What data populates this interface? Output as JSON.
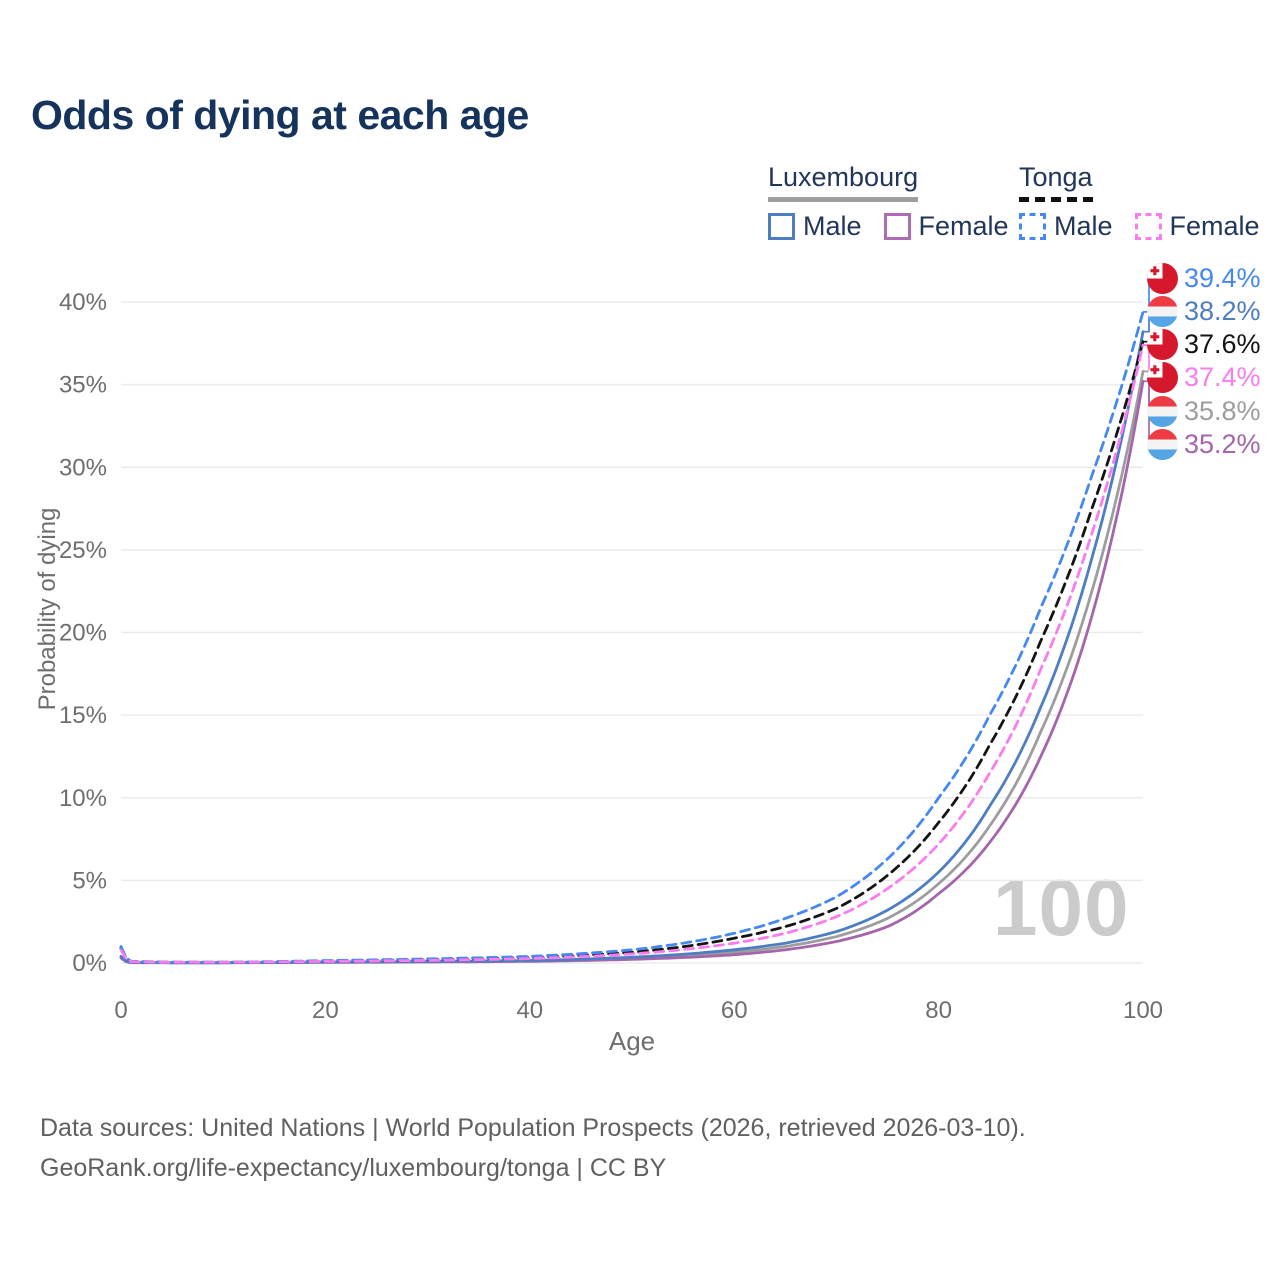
{
  "title": "Odds of dying at each age",
  "watermark": "100",
  "legend": {
    "luxembourg": {
      "title": "Luxembourg",
      "male_label": "Male",
      "female_label": "Female"
    },
    "tonga": {
      "title": "Tonga",
      "male_label": "Male",
      "female_label": "Female"
    }
  },
  "footer": {
    "line1": "Data sources: United Nations | World Population Prospects (2026, retrieved 2026-03-10).",
    "line2": "GeoRank.org/life-expectancy/luxembourg/tonga | CC BY"
  },
  "colors": {
    "title": "#16335c",
    "grid": "#ebebeb",
    "axis_text": "#6e6e6e",
    "tonga_male": "#4488f0",
    "luxembourg_male": "#4d7ec2",
    "tonga_both": "#141414",
    "tonga_female": "#fa7cee",
    "luxembourg_both": "#9d9d9d",
    "luxembourg_female": "#a565aa",
    "flag_red": "#d6182d",
    "flag_lux_red": "#ee3b44",
    "flag_lux_blue": "#55a5e5"
  },
  "chart_data": {
    "type": "line",
    "title": "Odds of dying at each age",
    "xlabel": "Age",
    "ylabel": "Probability of dying",
    "xlim": [
      0,
      100
    ],
    "ylim": [
      0,
      40
    ],
    "grid": true,
    "legend_position": "top-right",
    "xtick_values": [
      0,
      20,
      40,
      60,
      80,
      100
    ],
    "xtick_labels": [
      "0",
      "20",
      "40",
      "60",
      "80",
      "100"
    ],
    "ytick_values": [
      0,
      5,
      10,
      15,
      20,
      25,
      30,
      35,
      40
    ],
    "ytick_labels": [
      "0%",
      "5%",
      "10%",
      "15%",
      "20%",
      "25%",
      "30%",
      "35%",
      "40%"
    ],
    "x": [
      0,
      1,
      5,
      10,
      20,
      30,
      40,
      50,
      60,
      65,
      70,
      75,
      80,
      85,
      90,
      95,
      100
    ],
    "series": [
      {
        "name": "Luxembourg Both",
        "country": "Luxembourg",
        "sex": "Both",
        "color": "#9d9d9d",
        "dash": false,
        "values": [
          0.35,
          0.03,
          0.02,
          0.02,
          0.05,
          0.08,
          0.12,
          0.28,
          0.65,
          1.0,
          1.6,
          2.7,
          4.8,
          8.3,
          14.0,
          22.5,
          35.8
        ]
      },
      {
        "name": "Luxembourg Female",
        "country": "Luxembourg",
        "sex": "Female",
        "color": "#a565aa",
        "dash": false,
        "values": [
          0.3,
          0.02,
          0.015,
          0.015,
          0.04,
          0.06,
          0.1,
          0.22,
          0.5,
          0.8,
          1.3,
          2.2,
          4.2,
          7.3,
          12.5,
          21.0,
          35.2
        ]
      },
      {
        "name": "Luxembourg Male",
        "country": "Luxembourg",
        "sex": "Male",
        "color": "#4d7ec2",
        "dash": false,
        "values": [
          0.4,
          0.04,
          0.02,
          0.02,
          0.06,
          0.1,
          0.15,
          0.35,
          0.8,
          1.2,
          1.9,
          3.2,
          5.5,
          9.5,
          15.5,
          24.5,
          38.2
        ]
      },
      {
        "name": "Tonga Both",
        "country": "Tonga",
        "sex": "Both",
        "color": "#141414",
        "dash": true,
        "values": [
          0.9,
          0.09,
          0.045,
          0.04,
          0.12,
          0.2,
          0.33,
          0.65,
          1.5,
          2.2,
          3.3,
          5.3,
          8.5,
          13.2,
          19.5,
          27.5,
          37.6
        ]
      },
      {
        "name": "Tonga Male",
        "country": "Tonga",
        "sex": "Male",
        "color": "#4488f0",
        "dash": true,
        "values": [
          1.0,
          0.1,
          0.05,
          0.05,
          0.15,
          0.25,
          0.4,
          0.8,
          1.8,
          2.7,
          4.0,
          6.3,
          10.0,
          15.0,
          21.5,
          29.5,
          39.4
        ]
      },
      {
        "name": "Tonga Female",
        "country": "Tonga",
        "sex": "Female",
        "color": "#fa7cee",
        "dash": true,
        "values": [
          0.8,
          0.08,
          0.04,
          0.04,
          0.1,
          0.16,
          0.27,
          0.55,
          1.2,
          1.8,
          2.8,
          4.5,
          7.2,
          11.5,
          17.8,
          26.0,
          37.4
        ]
      }
    ],
    "end_labels": [
      {
        "text": "39.4%",
        "series": "Tonga Male",
        "flag": "tonga",
        "color": "#4488f0"
      },
      {
        "text": "38.2%",
        "series": "Luxembourg Male",
        "flag": "luxembourg",
        "color": "#4d7ec2"
      },
      {
        "text": "37.6%",
        "series": "Tonga Both",
        "flag": "tonga",
        "color": "#141414"
      },
      {
        "text": "37.4%",
        "series": "Tonga Female",
        "flag": "tonga",
        "color": "#fa7cee"
      },
      {
        "text": "35.8%",
        "series": "Luxembourg Both",
        "flag": "luxembourg",
        "color": "#9d9d9d"
      },
      {
        "text": "35.2%",
        "series": "Luxembourg Female",
        "flag": "luxembourg",
        "color": "#a565aa"
      }
    ]
  }
}
